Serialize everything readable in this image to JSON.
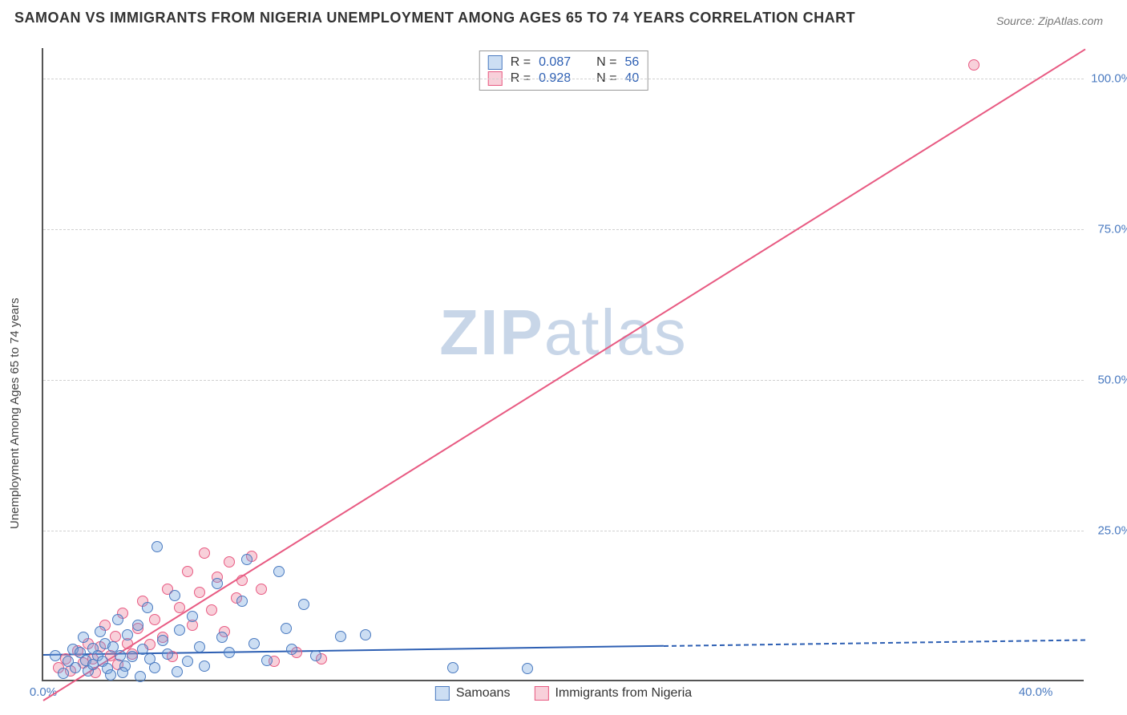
{
  "title": "SAMOAN VS IMMIGRANTS FROM NIGERIA UNEMPLOYMENT AMONG AGES 65 TO 74 YEARS CORRELATION CHART",
  "source": "Source: ZipAtlas.com",
  "y_axis_label": "Unemployment Among Ages 65 to 74 years",
  "watermark": {
    "bold": "ZIP",
    "light": "atlas"
  },
  "chart": {
    "type": "scatter",
    "xlim": [
      0,
      42
    ],
    "ylim": [
      0,
      105
    ],
    "x_ticks": [
      {
        "v": 0,
        "label": "0.0%"
      },
      {
        "v": 40,
        "label": "40.0%"
      }
    ],
    "y_ticks": [
      {
        "v": 25,
        "label": "25.0%"
      },
      {
        "v": 50,
        "label": "50.0%"
      },
      {
        "v": 75,
        "label": "75.0%"
      },
      {
        "v": 100,
        "label": "100.0%"
      }
    ],
    "gridlines_y": [
      25,
      50,
      75,
      100
    ],
    "background_color": "#ffffff",
    "grid_color": "#d0d0d0",
    "axis_color": "#555",
    "tick_font_color": "#4a7ac0",
    "tick_fontsize": 15,
    "title_fontsize": 18,
    "label_fontsize": 15,
    "point_radius": 7,
    "series": {
      "samoans": {
        "label": "Samoans",
        "color": "#4a7ac0",
        "fill": "rgba(110,160,220,0.35)",
        "R": "0.087",
        "N": "56",
        "trend": {
          "x0": 0,
          "y0": 4.5,
          "x1": 25,
          "y1": 6.0,
          "x2": 42,
          "y2": 7.0
        },
        "points": [
          [
            0.5,
            4
          ],
          [
            0.8,
            1
          ],
          [
            1.0,
            3
          ],
          [
            1.2,
            5
          ],
          [
            1.3,
            2
          ],
          [
            1.5,
            4.5
          ],
          [
            1.6,
            7
          ],
          [
            1.7,
            3.2
          ],
          [
            1.8,
            1.5
          ],
          [
            2.0,
            5.2
          ],
          [
            2.0,
            2.5
          ],
          [
            2.2,
            4
          ],
          [
            2.3,
            8
          ],
          [
            2.4,
            3
          ],
          [
            2.5,
            6
          ],
          [
            2.6,
            1.8
          ],
          [
            2.8,
            5.5
          ],
          [
            3.0,
            10
          ],
          [
            3.1,
            4
          ],
          [
            3.3,
            2.3
          ],
          [
            3.4,
            7.5
          ],
          [
            3.6,
            3.8
          ],
          [
            3.8,
            9
          ],
          [
            4.0,
            5
          ],
          [
            4.2,
            12
          ],
          [
            4.3,
            3.5
          ],
          [
            4.5,
            2
          ],
          [
            4.6,
            22
          ],
          [
            4.8,
            6.5
          ],
          [
            5.0,
            4.2
          ],
          [
            5.3,
            14
          ],
          [
            5.5,
            8.2
          ],
          [
            5.8,
            3
          ],
          [
            6.0,
            10.5
          ],
          [
            6.3,
            5.5
          ],
          [
            6.5,
            2.3
          ],
          [
            7.0,
            16
          ],
          [
            7.2,
            7
          ],
          [
            7.5,
            4.5
          ],
          [
            8.0,
            13
          ],
          [
            8.2,
            20
          ],
          [
            8.5,
            6
          ],
          [
            9.0,
            3.2
          ],
          [
            9.5,
            18
          ],
          [
            9.8,
            8.5
          ],
          [
            10.0,
            5
          ],
          [
            10.5,
            12.5
          ],
          [
            11.0,
            4
          ],
          [
            12.0,
            7.2
          ],
          [
            13.0,
            7.5
          ],
          [
            16.5,
            2
          ],
          [
            19.5,
            1.8
          ],
          [
            2.7,
            0.8
          ],
          [
            3.2,
            1.2
          ],
          [
            3.9,
            0.5
          ],
          [
            5.4,
            1.3
          ]
        ]
      },
      "nigeria": {
        "label": "Immigrants from Nigeria",
        "color": "#e85a82",
        "fill": "rgba(235,120,150,0.35)",
        "R": "0.928",
        "N": "40",
        "trend": {
          "x0": 0,
          "y0": -3,
          "x1": 42,
          "y1": 105
        },
        "points": [
          [
            0.6,
            2
          ],
          [
            0.9,
            3.5
          ],
          [
            1.1,
            1.5
          ],
          [
            1.4,
            4.8
          ],
          [
            1.6,
            2.8
          ],
          [
            1.8,
            6
          ],
          [
            2.0,
            3.5
          ],
          [
            2.1,
            1.2
          ],
          [
            2.3,
            5.5
          ],
          [
            2.5,
            9
          ],
          [
            2.7,
            4
          ],
          [
            2.9,
            7.2
          ],
          [
            3.0,
            2.5
          ],
          [
            3.2,
            11
          ],
          [
            3.4,
            6
          ],
          [
            3.6,
            4.2
          ],
          [
            3.8,
            8.5
          ],
          [
            4.0,
            13
          ],
          [
            4.3,
            5.8
          ],
          [
            4.5,
            10
          ],
          [
            4.8,
            7
          ],
          [
            5.0,
            15
          ],
          [
            5.2,
            3.8
          ],
          [
            5.5,
            12
          ],
          [
            5.8,
            18
          ],
          [
            6.0,
            9
          ],
          [
            6.3,
            14.5
          ],
          [
            6.5,
            21
          ],
          [
            6.8,
            11.5
          ],
          [
            7.0,
            17
          ],
          [
            7.3,
            8
          ],
          [
            7.5,
            19.5
          ],
          [
            7.8,
            13.5
          ],
          [
            8.0,
            16.5
          ],
          [
            8.4,
            20.5
          ],
          [
            8.8,
            15
          ],
          [
            9.3,
            3
          ],
          [
            10.2,
            4.5
          ],
          [
            11.2,
            3.5
          ],
          [
            37.5,
            102
          ]
        ]
      }
    }
  },
  "legend_top": {
    "rows": [
      {
        "swatch": "blue",
        "r_label": "R =",
        "r_val": "0.087",
        "n_label": "N =",
        "n_val": "56"
      },
      {
        "swatch": "pink",
        "r_label": "R =",
        "r_val": "0.928",
        "n_label": "N =",
        "n_val": "40"
      }
    ]
  },
  "legend_bottom": [
    {
      "swatch": "blue",
      "label": "Samoans"
    },
    {
      "swatch": "pink",
      "label": "Immigrants from Nigeria"
    }
  ]
}
